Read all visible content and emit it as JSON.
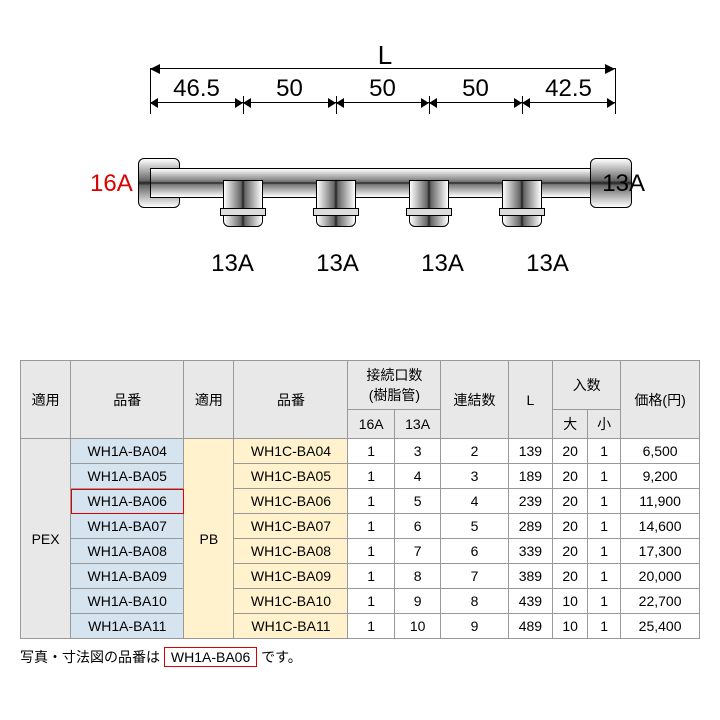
{
  "diagram": {
    "L_label": "L",
    "segments": [
      "46.5",
      "50",
      "50",
      "50",
      "42.5"
    ],
    "left_size": "16A",
    "left_color": "#d00000",
    "right_size": "13A",
    "branch_sizes": [
      "13A",
      "13A",
      "13A",
      "13A"
    ]
  },
  "table": {
    "headers": {
      "apply": "適用",
      "part_no": "品番",
      "conn_count": "接続口数\n(樹脂管)",
      "conn_16A": "16A",
      "conn_13A": "13A",
      "links": "連結数",
      "L": "L",
      "qty": "入数",
      "qty_big": "大",
      "qty_small": "小",
      "price": "価格(円)"
    },
    "apply1": "PEX",
    "apply2": "PB",
    "rows": [
      {
        "pn1": "WH1A-BA04",
        "pn2": "WH1C-BA04",
        "c16": "1",
        "c13": "3",
        "links": "2",
        "L": "139",
        "big": "20",
        "small": "1",
        "price": "6,500"
      },
      {
        "pn1": "WH1A-BA05",
        "pn2": "WH1C-BA05",
        "c16": "1",
        "c13": "4",
        "links": "3",
        "L": "189",
        "big": "20",
        "small": "1",
        "price": "9,200"
      },
      {
        "pn1": "WH1A-BA06",
        "pn2": "WH1C-BA06",
        "c16": "1",
        "c13": "5",
        "links": "4",
        "L": "239",
        "big": "20",
        "small": "1",
        "price": "11,900",
        "hl": true
      },
      {
        "pn1": "WH1A-BA07",
        "pn2": "WH1C-BA07",
        "c16": "1",
        "c13": "6",
        "links": "5",
        "L": "289",
        "big": "20",
        "small": "1",
        "price": "14,600"
      },
      {
        "pn1": "WH1A-BA08",
        "pn2": "WH1C-BA08",
        "c16": "1",
        "c13": "7",
        "links": "6",
        "L": "339",
        "big": "20",
        "small": "1",
        "price": "17,300"
      },
      {
        "pn1": "WH1A-BA09",
        "pn2": "WH1C-BA09",
        "c16": "1",
        "c13": "8",
        "links": "7",
        "L": "389",
        "big": "20",
        "small": "1",
        "price": "20,000"
      },
      {
        "pn1": "WH1A-BA10",
        "pn2": "WH1C-BA10",
        "c16": "1",
        "c13": "9",
        "links": "8",
        "L": "439",
        "big": "10",
        "small": "1",
        "price": "22,700"
      },
      {
        "pn1": "WH1A-BA11",
        "pn2": "WH1C-BA11",
        "c16": "1",
        "c13": "10",
        "links": "9",
        "L": "489",
        "big": "10",
        "small": "1",
        "price": "25,400"
      }
    ]
  },
  "footnote": {
    "prefix": "写真・寸法図の品番は",
    "boxed": "WH1A-BA06",
    "suffix": "です。"
  }
}
